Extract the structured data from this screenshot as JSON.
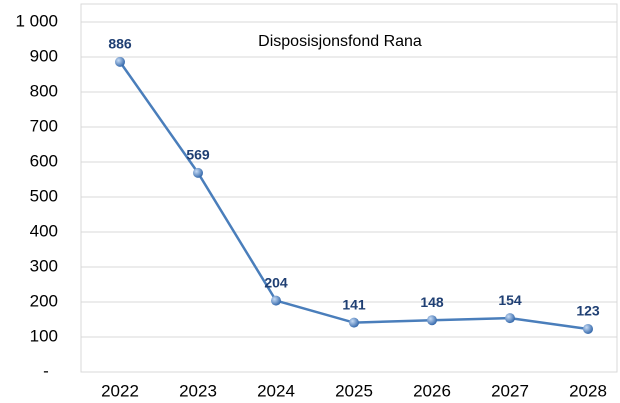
{
  "chart_data": {
    "type": "line",
    "title": "Disposisjonsfond Rana",
    "categories": [
      "2022",
      "2023",
      "2024",
      "2025",
      "2026",
      "2027",
      "2028"
    ],
    "series": [
      {
        "name": "Disposisjonsfond Rana",
        "color": "#4a7ebb",
        "values": [
          886,
          569,
          204,
          141,
          148,
          154,
          123
        ]
      }
    ],
    "ylim": [
      0,
      1000
    ],
    "yticks": [
      {
        "value": 0,
        "label": "-"
      },
      100,
      200,
      300,
      400,
      500,
      600,
      700,
      800,
      900,
      {
        "value": 1000,
        "label": "1 000"
      }
    ],
    "grid": true
  }
}
